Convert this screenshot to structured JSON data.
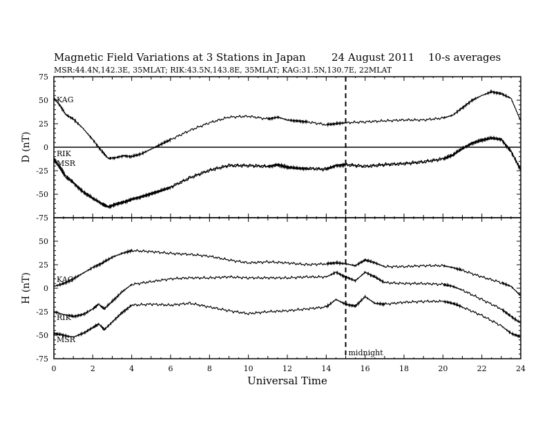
{
  "title": {
    "main": "Magnetic Field Variations at 3 Stations in Japan",
    "date": "24  August  2011",
    "avg": "10-s averages"
  },
  "subtitle": "MSR:44.4N,142.3E, 35MLAT;  RIK:43.5N,143.8E, 35MLAT;  KAG:31.5N,130.7E, 22MLAT",
  "midnight_label": "midnight",
  "chart_data": [
    {
      "type": "line",
      "panel": "top",
      "ylabel": "D (nT)",
      "ylim": [
        -75,
        75
      ],
      "yticks": [
        75,
        50,
        25,
        0,
        -25,
        -50,
        -75
      ],
      "xlim": [
        0,
        24
      ],
      "zero_line": true,
      "series": [
        {
          "name": "KAG",
          "x": [
            0,
            0.3,
            0.6,
            1,
            1.5,
            2,
            2.5,
            2.8,
            3.2,
            3.6,
            4,
            4.5,
            5,
            5.5,
            6,
            7,
            8,
            9,
            10,
            11,
            11.5,
            12,
            12.5,
            13,
            14,
            14.5,
            15,
            16,
            17,
            18,
            19,
            20,
            20.5,
            21,
            21.5,
            22,
            22.5,
            23,
            23.5,
            24
          ],
          "y": [
            52,
            45,
            35,
            30,
            20,
            8,
            -5,
            -12,
            -11,
            -9,
            -10,
            -7,
            -2,
            3,
            8,
            18,
            26,
            32,
            33,
            30,
            32,
            29,
            28,
            27,
            24,
            25,
            26,
            27,
            28,
            29,
            29,
            31,
            34,
            42,
            50,
            55,
            59,
            57,
            52,
            28
          ]
        },
        {
          "name": "RIK",
          "x": [
            0,
            0.3,
            0.6,
            1,
            1.5,
            2,
            2.5,
            2.8,
            3.2,
            3.6,
            4,
            4.5,
            5,
            5.5,
            6,
            7,
            8,
            9,
            10,
            11,
            11.5,
            12,
            12.5,
            13,
            14,
            14.5,
            15,
            16,
            17,
            18,
            19,
            20,
            20.5,
            21,
            21.5,
            22,
            22.5,
            23,
            23.5,
            24
          ],
          "y": [
            -14,
            -22,
            -32,
            -38,
            -48,
            -55,
            -61,
            -64,
            -61,
            -59,
            -56,
            -53,
            -50,
            -47,
            -43,
            -33,
            -25,
            -20,
            -20,
            -21,
            -19,
            -22,
            -23,
            -23,
            -24,
            -20,
            -19,
            -21,
            -19,
            -18,
            -16,
            -13,
            -9,
            -2,
            4,
            7,
            9,
            8,
            -5,
            -23
          ]
        },
        {
          "name": "MSR",
          "x": [
            0,
            0.3,
            0.6,
            1,
            1.5,
            2,
            2.5,
            2.8,
            3.2,
            3.6,
            4,
            4.5,
            5,
            5.5,
            6,
            7,
            8,
            9,
            10,
            11,
            11.5,
            12,
            12.5,
            13,
            14,
            14.5,
            15,
            16,
            17,
            18,
            19,
            20,
            20.5,
            21,
            21.5,
            22,
            22.5,
            23,
            23.5,
            24
          ],
          "y": [
            -12,
            -20,
            -30,
            -37,
            -47,
            -54,
            -60,
            -63,
            -60,
            -58,
            -55,
            -52,
            -49,
            -46,
            -42,
            -32,
            -24,
            -19,
            -19,
            -20,
            -18,
            -21,
            -22,
            -22,
            -23,
            -19,
            -18,
            -20,
            -18,
            -17,
            -15,
            -12,
            -8,
            -1,
            5,
            8,
            10,
            9,
            -4,
            -25
          ]
        }
      ]
    },
    {
      "type": "line",
      "panel": "bottom",
      "ylabel": "H (nT)",
      "ylim": [
        -75,
        75
      ],
      "yticks": [
        50,
        25,
        0,
        -25,
        -50,
        -75
      ],
      "xlim": [
        0,
        24
      ],
      "xticks": [
        0,
        2,
        4,
        6,
        8,
        10,
        12,
        14,
        16,
        18,
        20,
        22,
        24
      ],
      "xlabel": "Universal Time",
      "series": [
        {
          "name": "KAG",
          "x": [
            0,
            0.5,
            1,
            1.5,
            2,
            2.5,
            3,
            3.5,
            4,
            5,
            6,
            7,
            8,
            9,
            10,
            11,
            12,
            13,
            14,
            14.5,
            15,
            15.5,
            16,
            16.5,
            17,
            18,
            19,
            20,
            20.5,
            21,
            22,
            23,
            23.5,
            24
          ],
          "y": [
            2,
            5,
            10,
            16,
            22,
            27,
            33,
            37,
            40,
            39,
            37,
            36,
            34,
            30,
            27,
            28,
            27,
            25,
            26,
            27,
            26,
            24,
            30,
            27,
            23,
            23,
            24,
            24,
            22,
            19,
            12,
            6,
            2,
            -8
          ]
        },
        {
          "name": "RIK",
          "x": [
            0,
            0.5,
            1,
            1.5,
            2,
            2.3,
            2.6,
            3,
            3.5,
            4,
            5,
            6,
            7,
            8,
            9,
            10,
            11,
            12,
            13,
            14,
            14.5,
            15,
            15.5,
            16,
            16.5,
            17,
            18,
            19,
            20,
            20.5,
            21,
            22,
            23,
            23.5,
            24
          ],
          "y": [
            -25,
            -28,
            -30,
            -28,
            -22,
            -17,
            -22,
            -14,
            -4,
            4,
            7,
            10,
            11,
            11,
            12,
            11,
            11,
            11,
            12,
            12,
            17,
            12,
            8,
            17,
            12,
            6,
            5,
            5,
            4,
            2,
            -2,
            -12,
            -22,
            -30,
            -37
          ]
        },
        {
          "name": "MSR",
          "x": [
            0,
            0.5,
            1,
            1.5,
            2,
            2.3,
            2.6,
            3,
            3.5,
            4,
            5,
            6,
            7,
            8,
            9,
            10,
            11,
            12,
            13,
            14,
            14.5,
            15,
            15.5,
            16,
            16.5,
            17,
            18,
            19,
            20,
            20.5,
            21,
            22,
            23,
            23.5,
            24
          ],
          "y": [
            -48,
            -50,
            -52,
            -48,
            -42,
            -38,
            -44,
            -36,
            -26,
            -18,
            -17,
            -18,
            -16,
            -20,
            -24,
            -27,
            -25,
            -24,
            -22,
            -20,
            -12,
            -17,
            -19,
            -9,
            -16,
            -17,
            -15,
            -14,
            -14,
            -16,
            -20,
            -29,
            -40,
            -48,
            -52
          ]
        }
      ]
    }
  ]
}
